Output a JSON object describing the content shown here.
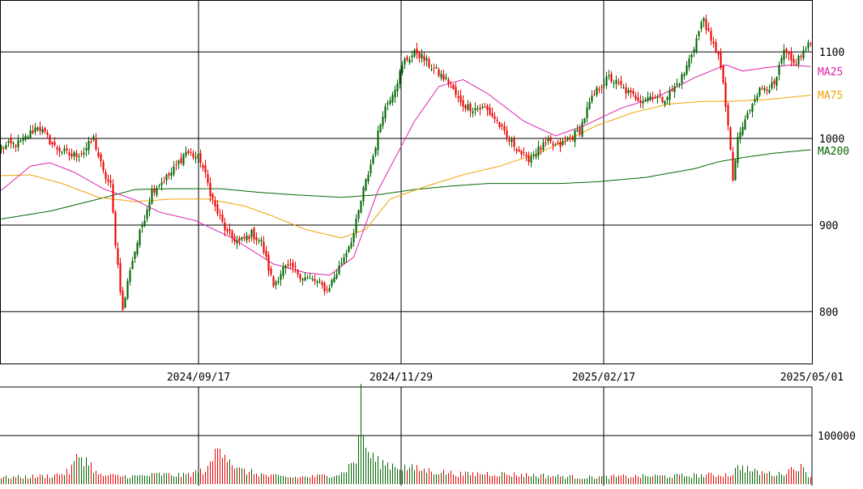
{
  "chart_data": {
    "type": "candlestick",
    "x_ticks": [
      "2024/09/17",
      "2024/11/29",
      "2025/02/17",
      "2025/05/01"
    ],
    "y_ticks": [
      800,
      900,
      1000,
      1100
    ],
    "ylim": [
      740,
      1160
    ],
    "volume_tick": "100000",
    "volume_ylim": [
      0,
      200000
    ],
    "legend": [
      {
        "name": "MA25",
        "color": "#dd22aa"
      },
      {
        "name": "MA75",
        "color": "#f0a000"
      },
      {
        "name": "MA200",
        "color": "#006600"
      }
    ],
    "colors": {
      "up": "#006600",
      "down": "#ee0000"
    },
    "candle_anchors": [
      [
        0,
        990
      ],
      [
        8,
        995
      ],
      [
        15,
        1015
      ],
      [
        22,
        990
      ],
      [
        29,
        980
      ],
      [
        34,
        985
      ],
      [
        38,
        1000
      ],
      [
        42,
        960
      ],
      [
        45,
        945
      ],
      [
        47,
        880
      ],
      [
        50,
        800
      ],
      [
        53,
        850
      ],
      [
        57,
        890
      ],
      [
        62,
        940
      ],
      [
        66,
        950
      ],
      [
        70,
        960
      ],
      [
        76,
        985
      ],
      [
        82,
        975
      ],
      [
        88,
        920
      ],
      [
        93,
        890
      ],
      [
        98,
        880
      ],
      [
        103,
        890
      ],
      [
        107,
        880
      ],
      [
        112,
        830
      ],
      [
        116,
        850
      ],
      [
        120,
        850
      ],
      [
        124,
        840
      ],
      [
        129,
        835
      ],
      [
        134,
        825
      ],
      [
        138,
        845
      ],
      [
        142,
        870
      ],
      [
        145,
        890
      ],
      [
        149,
        940
      ],
      [
        153,
        980
      ],
      [
        157,
        1030
      ],
      [
        162,
        1060
      ],
      [
        166,
        1090
      ],
      [
        171,
        1100
      ],
      [
        176,
        1085
      ],
      [
        180,
        1075
      ],
      [
        184,
        1065
      ],
      [
        189,
        1040
      ],
      [
        194,
        1035
      ],
      [
        199,
        1035
      ],
      [
        204,
        1020
      ],
      [
        208,
        1000
      ],
      [
        212,
        990
      ],
      [
        216,
        975
      ],
      [
        220,
        985
      ],
      [
        225,
        995
      ],
      [
        229,
        990
      ],
      [
        234,
        1000
      ],
      [
        238,
        1010
      ],
      [
        242,
        1040
      ],
      [
        246,
        1060
      ],
      [
        250,
        1070
      ],
      [
        255,
        1060
      ],
      [
        259,
        1050
      ],
      [
        264,
        1045
      ],
      [
        268,
        1050
      ],
      [
        272,
        1045
      ],
      [
        276,
        1055
      ],
      [
        281,
        1075
      ],
      [
        286,
        1115
      ],
      [
        289,
        1140
      ],
      [
        292,
        1110
      ],
      [
        295,
        1100
      ],
      [
        297,
        1060
      ],
      [
        299,
        1015
      ],
      [
        301,
        950
      ],
      [
        303,
        1000
      ],
      [
        306,
        1020
      ],
      [
        310,
        1050
      ],
      [
        314,
        1060
      ],
      [
        318,
        1060
      ],
      [
        322,
        1100
      ],
      [
        326,
        1085
      ],
      [
        330,
        1100
      ],
      [
        333,
        1110
      ]
    ],
    "ma25_anchors": [
      [
        0,
        940
      ],
      [
        12,
        968
      ],
      [
        20,
        972
      ],
      [
        30,
        961
      ],
      [
        42,
        942
      ],
      [
        55,
        929
      ],
      [
        65,
        915
      ],
      [
        80,
        905
      ],
      [
        95,
        885
      ],
      [
        112,
        855
      ],
      [
        125,
        845
      ],
      [
        135,
        842
      ],
      [
        145,
        863
      ],
      [
        155,
        940
      ],
      [
        170,
        1020
      ],
      [
        180,
        1060
      ],
      [
        190,
        1068
      ],
      [
        200,
        1052
      ],
      [
        215,
        1020
      ],
      [
        228,
        1003
      ],
      [
        240,
        1015
      ],
      [
        255,
        1035
      ],
      [
        270,
        1048
      ],
      [
        285,
        1070
      ],
      [
        298,
        1085
      ],
      [
        305,
        1078
      ],
      [
        315,
        1082
      ],
      [
        325,
        1085
      ],
      [
        333,
        1083
      ]
    ],
    "ma75_anchors": [
      [
        0,
        957
      ],
      [
        12,
        958
      ],
      [
        25,
        948
      ],
      [
        40,
        932
      ],
      [
        55,
        927
      ],
      [
        70,
        930
      ],
      [
        85,
        930
      ],
      [
        100,
        922
      ],
      [
        112,
        910
      ],
      [
        125,
        895
      ],
      [
        140,
        885
      ],
      [
        150,
        895
      ],
      [
        160,
        930
      ],
      [
        175,
        945
      ],
      [
        190,
        958
      ],
      [
        205,
        968
      ],
      [
        220,
        982
      ],
      [
        232,
        997
      ],
      [
        245,
        1015
      ],
      [
        260,
        1030
      ],
      [
        275,
        1040
      ],
      [
        290,
        1043
      ],
      [
        300,
        1043
      ],
      [
        315,
        1045
      ],
      [
        333,
        1050
      ]
    ],
    "ma200_anchors": [
      [
        0,
        907
      ],
      [
        20,
        916
      ],
      [
        40,
        930
      ],
      [
        55,
        941
      ],
      [
        70,
        942
      ],
      [
        90,
        942
      ],
      [
        105,
        938
      ],
      [
        120,
        935
      ],
      [
        140,
        932
      ],
      [
        155,
        935
      ],
      [
        170,
        941
      ],
      [
        185,
        945
      ],
      [
        200,
        948
      ],
      [
        230,
        948
      ],
      [
        245,
        950
      ],
      [
        265,
        955
      ],
      [
        285,
        965
      ],
      [
        295,
        973
      ],
      [
        305,
        978
      ],
      [
        318,
        983
      ],
      [
        333,
        987
      ]
    ],
    "volume_anchors": [
      [
        0,
        14000
      ],
      [
        10,
        15000
      ],
      [
        20,
        17000
      ],
      [
        28,
        25000
      ],
      [
        32,
        60000
      ],
      [
        36,
        45000
      ],
      [
        40,
        18000
      ],
      [
        55,
        16000
      ],
      [
        65,
        20000
      ],
      [
        75,
        18000
      ],
      [
        85,
        30000
      ],
      [
        90,
        85000
      ],
      [
        93,
        60000
      ],
      [
        97,
        30000
      ],
      [
        110,
        17000
      ],
      [
        120,
        14000
      ],
      [
        130,
        16000
      ],
      [
        140,
        22000
      ],
      [
        146,
        50000
      ],
      [
        148,
        165000
      ],
      [
        150,
        70000
      ],
      [
        155,
        45000
      ],
      [
        165,
        35000
      ],
      [
        175,
        28000
      ],
      [
        190,
        20000
      ],
      [
        200,
        22000
      ],
      [
        210,
        20000
      ],
      [
        220,
        18000
      ],
      [
        240,
        14000
      ],
      [
        260,
        16000
      ],
      [
        280,
        17000
      ],
      [
        300,
        20000
      ],
      [
        304,
        37000
      ],
      [
        310,
        25000
      ],
      [
        320,
        20000
      ],
      [
        328,
        38000
      ],
      [
        333,
        15000
      ]
    ]
  }
}
